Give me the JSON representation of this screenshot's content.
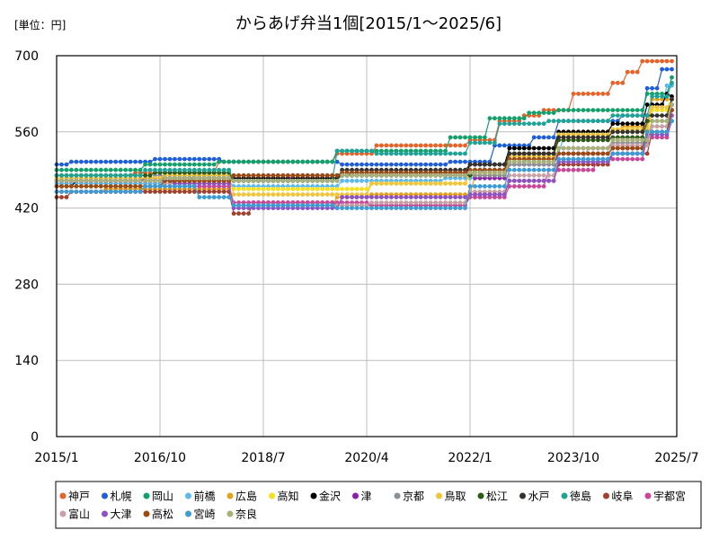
{
  "chart_data": {
    "type": "line",
    "title": "からあげ弁当1個[2015/1～2025/6]",
    "unit_label": "[単位：円]",
    "xlabel": "",
    "ylabel": "",
    "ylim": [
      0,
      700
    ],
    "y_ticks": [
      0,
      140,
      280,
      420,
      560,
      700
    ],
    "y_tick_labels": [
      "0",
      "140",
      "280",
      "420",
      "560",
      "700"
    ],
    "xlim": [
      0,
      126
    ],
    "x_ticks": [
      0,
      21,
      42,
      63,
      84,
      105,
      126
    ],
    "x_tick_labels": [
      "2015/1",
      "2016/10",
      "2018/7",
      "2020/4",
      "2022/1",
      "2023/10",
      "2025/7"
    ],
    "x_start": "2015/1",
    "x_end": "2025/6",
    "legend_position": "bottom",
    "series": [
      {
        "name": "神戸",
        "color": "#e8632a",
        "bp": [
          [
            0,
            480
          ],
          [
            16,
            485
          ],
          [
            33,
            505
          ],
          [
            57,
            520
          ],
          [
            65,
            535
          ],
          [
            84,
            545
          ],
          [
            90,
            580
          ],
          [
            95,
            590
          ],
          [
            99,
            600
          ],
          [
            105,
            630
          ],
          [
            113,
            650
          ],
          [
            116,
            670
          ],
          [
            119,
            690
          ],
          [
            125,
            690
          ]
        ]
      },
      {
        "name": "札幌",
        "color": "#1f5fd6",
        "bp": [
          [
            0,
            500
          ],
          [
            3,
            505
          ],
          [
            20,
            510
          ],
          [
            34,
            505
          ],
          [
            58,
            500
          ],
          [
            80,
            505
          ],
          [
            89,
            535
          ],
          [
            97,
            550
          ],
          [
            102,
            580
          ],
          [
            115,
            590
          ],
          [
            120,
            640
          ],
          [
            123,
            675
          ],
          [
            125,
            675
          ]
        ]
      },
      {
        "name": "岡山",
        "color": "#14a06b",
        "bp": [
          [
            0,
            490
          ],
          [
            18,
            500
          ],
          [
            33,
            505
          ],
          [
            57,
            525
          ],
          [
            80,
            550
          ],
          [
            88,
            585
          ],
          [
            96,
            595
          ],
          [
            102,
            600
          ],
          [
            113,
            600
          ],
          [
            120,
            630
          ],
          [
            125,
            660
          ]
        ]
      },
      {
        "name": "前橋",
        "color": "#5bb8f0",
        "bp": [
          [
            0,
            465
          ],
          [
            22,
            470
          ],
          [
            36,
            460
          ],
          [
            58,
            470
          ],
          [
            79,
            475
          ],
          [
            87,
            500
          ],
          [
            96,
            520
          ],
          [
            103,
            550
          ],
          [
            113,
            560
          ],
          [
            121,
            600
          ],
          [
            124,
            645
          ],
          [
            125,
            645
          ]
        ]
      },
      {
        "name": "広島",
        "color": "#e6a21c",
        "bp": [
          [
            0,
            450
          ],
          [
            10,
            455
          ],
          [
            36,
            425
          ],
          [
            57,
            440
          ],
          [
            64,
            445
          ],
          [
            85,
            480
          ],
          [
            92,
            520
          ],
          [
            102,
            560
          ],
          [
            115,
            570
          ],
          [
            121,
            620
          ],
          [
            125,
            620
          ]
        ]
      },
      {
        "name": "高知",
        "color": "#f7e020",
        "bp": [
          [
            0,
            460
          ],
          [
            22,
            465
          ],
          [
            36,
            455
          ],
          [
            64,
            465
          ],
          [
            84,
            480
          ],
          [
            92,
            510
          ],
          [
            102,
            550
          ],
          [
            113,
            560
          ],
          [
            121,
            600
          ],
          [
            125,
            620
          ]
        ]
      },
      {
        "name": "金沢",
        "color": "#000000",
        "bp": [
          [
            0,
            460
          ],
          [
            4,
            470
          ],
          [
            28,
            480
          ],
          [
            36,
            475
          ],
          [
            58,
            480
          ],
          [
            84,
            500
          ],
          [
            92,
            530
          ],
          [
            102,
            560
          ],
          [
            113,
            575
          ],
          [
            120,
            610
          ],
          [
            124,
            630
          ],
          [
            125,
            625
          ]
        ]
      },
      {
        "name": "津",
        "color": "#8a1fa8",
        "bp": [
          [
            0,
            470
          ],
          [
            18,
            475
          ],
          [
            36,
            470
          ],
          [
            48,
            480
          ],
          [
            60,
            485
          ],
          [
            85,
            475
          ],
          [
            92,
            500
          ],
          [
            102,
            520
          ],
          [
            113,
            530
          ],
          [
            120,
            560
          ],
          [
            125,
            600
          ]
        ]
      },
      {
        "name": "京都",
        "color": "#8b9097",
        "bp": [
          [
            0,
            470
          ],
          [
            20,
            480
          ],
          [
            36,
            480
          ],
          [
            60,
            485
          ],
          [
            84,
            480
          ],
          [
            92,
            500
          ],
          [
            102,
            530
          ],
          [
            113,
            540
          ],
          [
            121,
            570
          ],
          [
            125,
            610
          ]
        ]
      },
      {
        "name": "鳥取",
        "color": "#f0c43c",
        "bp": [
          [
            0,
            475
          ],
          [
            22,
            480
          ],
          [
            36,
            445
          ],
          [
            64,
            465
          ],
          [
            84,
            485
          ],
          [
            92,
            515
          ],
          [
            102,
            555
          ],
          [
            113,
            565
          ],
          [
            121,
            605
          ],
          [
            125,
            620
          ]
        ]
      },
      {
        "name": "松江",
        "color": "#2e5a16",
        "bp": [
          [
            0,
            480
          ],
          [
            20,
            485
          ],
          [
            36,
            470
          ],
          [
            57,
            480
          ],
          [
            85,
            490
          ],
          [
            92,
            520
          ],
          [
            102,
            545
          ],
          [
            113,
            550
          ],
          [
            120,
            580
          ],
          [
            125,
            610
          ]
        ]
      },
      {
        "name": "水戸",
        "color": "#36312c",
        "bp": [
          [
            0,
            470
          ],
          [
            22,
            475
          ],
          [
            36,
            470
          ],
          [
            58,
            490
          ],
          [
            84,
            500
          ],
          [
            92,
            520
          ],
          [
            102,
            550
          ],
          [
            113,
            560
          ],
          [
            120,
            590
          ],
          [
            125,
            620
          ]
        ]
      },
      {
        "name": "徳島",
        "color": "#1ea396",
        "bp": [
          [
            0,
            480
          ],
          [
            18,
            490
          ],
          [
            36,
            470
          ],
          [
            57,
            525
          ],
          [
            65,
            520
          ],
          [
            84,
            540
          ],
          [
            90,
            575
          ],
          [
            100,
            580
          ],
          [
            113,
            590
          ],
          [
            121,
            625
          ],
          [
            125,
            650
          ]
        ]
      },
      {
        "name": "岐阜",
        "color": "#a0402e",
        "bp": [
          [
            0,
            440
          ],
          [
            3,
            450
          ],
          [
            36,
            410
          ],
          [
            40,
            430
          ],
          [
            57,
            425
          ],
          [
            84,
            445
          ],
          [
            92,
            470
          ],
          [
            102,
            500
          ],
          [
            113,
            520
          ],
          [
            121,
            560
          ],
          [
            125,
            600
          ]
        ]
      },
      {
        "name": "宇都宮",
        "color": "#c94698",
        "bp": [
          [
            0,
            450
          ],
          [
            18,
            460
          ],
          [
            36,
            430
          ],
          [
            64,
            425
          ],
          [
            84,
            440
          ],
          [
            92,
            460
          ],
          [
            100,
            490
          ],
          [
            110,
            510
          ],
          [
            120,
            550
          ],
          [
            125,
            580
          ]
        ]
      },
      {
        "name": "富山",
        "color": "#c8a0a6",
        "bp": [
          [
            0,
            460
          ],
          [
            22,
            465
          ],
          [
            36,
            425
          ],
          [
            64,
            430
          ],
          [
            84,
            450
          ],
          [
            92,
            480
          ],
          [
            102,
            510
          ],
          [
            108,
            530
          ],
          [
            113,
            535
          ],
          [
            121,
            570
          ],
          [
            125,
            600
          ]
        ]
      },
      {
        "name": "大津",
        "color": "#8e52c4",
        "bp": [
          [
            0,
            470
          ],
          [
            24,
            465
          ],
          [
            36,
            420
          ],
          [
            58,
            440
          ],
          [
            84,
            445
          ],
          [
            92,
            470
          ],
          [
            102,
            505
          ],
          [
            113,
            520
          ],
          [
            120,
            555
          ],
          [
            125,
            590
          ]
        ]
      },
      {
        "name": "高松",
        "color": "#9b4a14",
        "bp": [
          [
            0,
            460
          ],
          [
            22,
            470
          ],
          [
            36,
            480
          ],
          [
            58,
            485
          ],
          [
            84,
            490
          ],
          [
            92,
            510
          ],
          [
            102,
            520
          ],
          [
            113,
            530
          ],
          [
            120,
            560
          ],
          [
            125,
            600
          ]
        ]
      },
      {
        "name": "宮崎",
        "color": "#3c9ad4",
        "bp": [
          [
            0,
            450
          ],
          [
            18,
            460
          ],
          [
            29,
            440
          ],
          [
            36,
            425
          ],
          [
            57,
            420
          ],
          [
            80,
            420
          ],
          [
            84,
            460
          ],
          [
            92,
            490
          ],
          [
            102,
            510
          ],
          [
            113,
            520
          ],
          [
            120,
            560
          ],
          [
            125,
            580
          ]
        ]
      },
      {
        "name": "奈良",
        "color": "#a9b07a",
        "bp": [
          [
            0,
            470
          ],
          [
            22,
            475
          ],
          [
            36,
            470
          ],
          [
            58,
            480
          ],
          [
            84,
            485
          ],
          [
            92,
            505
          ],
          [
            102,
            530
          ],
          [
            113,
            545
          ],
          [
            121,
            580
          ],
          [
            125,
            610
          ]
        ]
      }
    ]
  }
}
